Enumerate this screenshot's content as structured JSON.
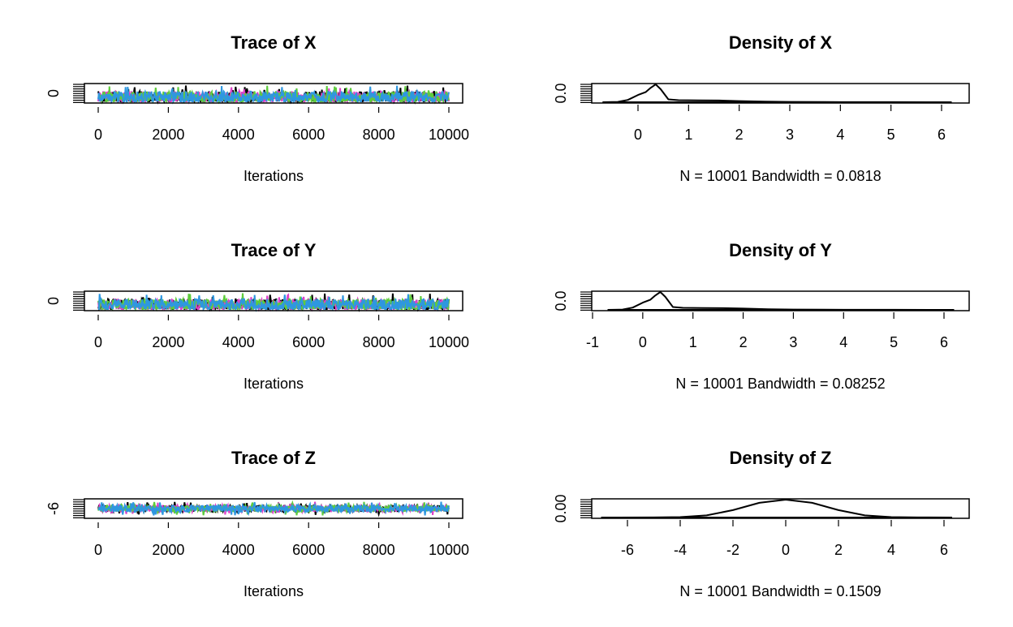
{
  "chart_data": [
    {
      "type": "line",
      "panel": "trace",
      "title": "Trace of X",
      "xlabel": "Iterations",
      "xlim": [
        0,
        10000
      ],
      "xticks": [
        "0",
        "2000",
        "4000",
        "6000",
        "8000",
        "10000"
      ],
      "yticks": [
        "0"
      ],
      "chains": 4,
      "chain_colors": [
        "#000000",
        "#df3fc9",
        "#5ecc3c",
        "#2e97e0"
      ],
      "level": 0.3,
      "spread": 0.6
    },
    {
      "type": "line",
      "panel": "density",
      "title": "Density of X",
      "xlabel": "N = 10001   Bandwidth = 0.0818",
      "xlim": [
        -1,
        6.5
      ],
      "xticks": [
        "0",
        "1",
        "2",
        "3",
        "4",
        "5",
        "6"
      ],
      "yticks": [
        "0.0"
      ],
      "x": [
        -0.7,
        -0.4,
        -0.2,
        0,
        0.15,
        0.25,
        0.35,
        0.45,
        0.6,
        0.8,
        1.2,
        1.6,
        2,
        2.5,
        3,
        4,
        5,
        6.2
      ],
      "y": [
        0,
        0.01,
        0.08,
        0.25,
        0.35,
        0.5,
        0.62,
        0.45,
        0.1,
        0.07,
        0.065,
        0.06,
        0.04,
        0.02,
        0.01,
        0.004,
        0.002,
        0
      ]
    },
    {
      "type": "line",
      "panel": "trace",
      "title": "Trace of Y",
      "xlabel": "Iterations",
      "xlim": [
        0,
        10000
      ],
      "xticks": [
        "0",
        "2000",
        "4000",
        "6000",
        "8000",
        "10000"
      ],
      "yticks": [
        "0"
      ],
      "chains": 4,
      "chain_colors": [
        "#000000",
        "#df3fc9",
        "#5ecc3c",
        "#2e97e0"
      ],
      "level": 0.3,
      "spread": 0.6
    },
    {
      "type": "line",
      "panel": "density",
      "title": "Density of Y",
      "xlabel": "N = 10001   Bandwidth = 0.08252",
      "xlim": [
        -1,
        6.5
      ],
      "xticks": [
        "-1",
        "0",
        "1",
        "2",
        "3",
        "4",
        "5",
        "6"
      ],
      "yticks": [
        "0.0"
      ],
      "x": [
        -0.7,
        -0.4,
        -0.2,
        0,
        0.15,
        0.25,
        0.35,
        0.45,
        0.6,
        0.8,
        1.2,
        1.6,
        2,
        2.5,
        3,
        4,
        5,
        6.2
      ],
      "y": [
        0,
        0.01,
        0.08,
        0.25,
        0.35,
        0.5,
        0.62,
        0.45,
        0.1,
        0.07,
        0.065,
        0.06,
        0.045,
        0.02,
        0.01,
        0.004,
        0.002,
        0
      ]
    },
    {
      "type": "line",
      "panel": "trace",
      "title": "Trace of Z",
      "xlabel": "Iterations",
      "xlim": [
        0,
        10000
      ],
      "xticks": [
        "0",
        "2000",
        "4000",
        "6000",
        "8000",
        "10000"
      ],
      "yticks": [
        "-6"
      ],
      "chains": 4,
      "chain_colors": [
        "#000000",
        "#df3fc9",
        "#5ecc3c",
        "#2e97e0"
      ],
      "level": 0.5,
      "spread": 0.35
    },
    {
      "type": "line",
      "panel": "density",
      "title": "Density of Z",
      "xlabel": "N = 10001   Bandwidth = 0.1509",
      "xlim": [
        -7,
        7
      ],
      "xticks": [
        "-6",
        "-4",
        "-2",
        "0",
        "2",
        "4",
        "6"
      ],
      "yticks": [
        "0.00"
      ],
      "x": [
        -7,
        -5,
        -4,
        -3,
        -2,
        -1,
        0,
        1,
        2,
        3,
        4,
        5,
        6.3
      ],
      "y": [
        0,
        0.001,
        0.004,
        0.02,
        0.07,
        0.14,
        0.17,
        0.14,
        0.07,
        0.02,
        0.004,
        0.001,
        0
      ]
    }
  ]
}
